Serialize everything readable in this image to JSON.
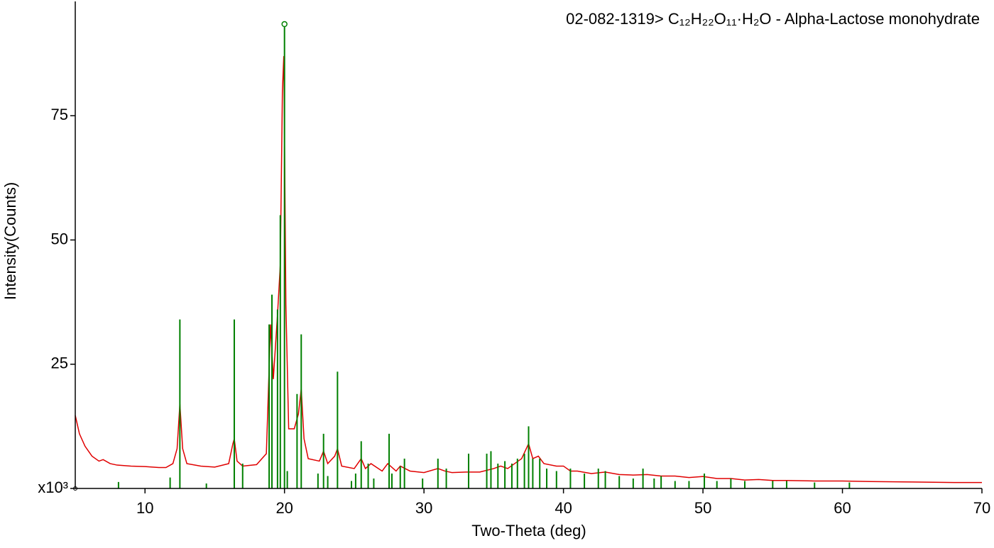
{
  "chart_data": {
    "type": "line",
    "title": "02-082-1319> C₁₂H₂₂O₁₁·H₂O - Alpha-Lactose monohydrate",
    "title_color": "#008000",
    "x_label": "Two-Theta (deg)",
    "y_label": "Intensity(Counts)",
    "xlim": [
      5,
      70
    ],
    "xticks": [
      10,
      20,
      30,
      40,
      50,
      60,
      70
    ],
    "ylim": [
      0,
      98
    ],
    "yticks": [
      {
        "value": 0,
        "label": "x10³"
      },
      25,
      50,
      75
    ],
    "series": [
      {
        "type": "line",
        "color": "#e00000",
        "x": [
          5,
          5.3,
          5.7,
          6.2,
          6.7,
          7,
          7.5,
          8,
          9,
          10,
          11,
          11.5,
          12,
          12.3,
          12.5,
          12.7,
          13,
          14,
          15,
          16,
          16.3,
          16.4,
          16.6,
          17,
          18,
          18.7,
          19,
          19.2,
          19.5,
          19.7,
          19.85,
          19.95,
          20.1,
          20.3,
          20.7,
          21,
          21.2,
          21.4,
          21.7,
          22.5,
          22.8,
          23.1,
          23.6,
          23.8,
          24.1,
          25,
          25.5,
          25.8,
          26.2,
          27,
          27.4,
          28,
          28.3,
          29,
          30,
          31,
          31.5,
          32,
          33,
          34,
          35,
          35.5,
          36,
          36.5,
          37,
          37.5,
          37.8,
          38.2,
          38.6,
          39.5,
          40,
          40.5,
          41,
          42,
          43,
          44,
          45,
          46,
          47,
          48,
          49,
          50,
          51,
          52,
          53,
          54,
          55,
          56,
          58,
          60,
          62,
          65,
          68,
          70
        ],
        "values": [
          14.7,
          11,
          8.5,
          6.5,
          5.5,
          5.8,
          5,
          4.7,
          4.5,
          4.4,
          4.2,
          4.2,
          5,
          8,
          17,
          8,
          5,
          4.5,
          4.3,
          5,
          9,
          10,
          5.5,
          4.5,
          4.8,
          7,
          33,
          22,
          35,
          45,
          80,
          87,
          37,
          12,
          12,
          15,
          20,
          10,
          6,
          5.5,
          7.5,
          5,
          6.5,
          8,
          4.5,
          4,
          6,
          4,
          5,
          3.5,
          5,
          3.5,
          4.5,
          3.5,
          3.2,
          4,
          3.5,
          3.2,
          3.3,
          3.3,
          4,
          4.5,
          4,
          5,
          6,
          9,
          6,
          6.5,
          5,
          4.5,
          4.5,
          3.5,
          3.5,
          3,
          3.3,
          2.8,
          2.7,
          2.8,
          2.5,
          2.5,
          2.2,
          2.4,
          2,
          2,
          1.7,
          1.8,
          1.6,
          1.6,
          1.5,
          1.5,
          1.4,
          1.3,
          1.2,
          1.2
        ]
      },
      {
        "type": "stick",
        "color": "#008000",
        "x": [
          8.1,
          11.8,
          12.5,
          14.4,
          16.4,
          17.0,
          18.9,
          19.1,
          19.5,
          19.7,
          20.0,
          20.2,
          20.9,
          21.2,
          22.4,
          22.8,
          23.1,
          23.8,
          24.8,
          25.1,
          25.5,
          26.0,
          26.4,
          27.5,
          27.7,
          28.3,
          28.6,
          29.9,
          31.0,
          31.6,
          33.2,
          34.5,
          34.8,
          35.3,
          35.8,
          36.3,
          36.7,
          37.2,
          37.5,
          37.8,
          38.3,
          38.8,
          39.5,
          40.5,
          41.5,
          42.5,
          43.0,
          44.0,
          45.0,
          45.7,
          46.5,
          47.0,
          48.0,
          49.0,
          50.1,
          51.0,
          52.0,
          53.0,
          55.0,
          56.0,
          58.0,
          60.5
        ],
        "values": [
          1.3,
          2.2,
          34,
          1,
          34,
          5,
          33,
          39,
          36,
          55,
          93,
          3.5,
          19,
          31,
          3,
          11,
          2.5,
          23.5,
          1.5,
          3,
          9.5,
          5,
          2,
          11,
          3,
          4.5,
          6,
          2,
          6,
          4,
          7,
          7,
          7.5,
          5,
          5.5,
          5,
          6,
          7,
          12.5,
          6,
          6,
          4,
          3.5,
          4,
          3,
          4,
          3.5,
          2.5,
          2,
          4,
          2,
          2.5,
          1.5,
          1.5,
          3,
          1.5,
          2,
          1.5,
          1.5,
          1.5,
          1.2,
          1.2
        ]
      }
    ]
  }
}
